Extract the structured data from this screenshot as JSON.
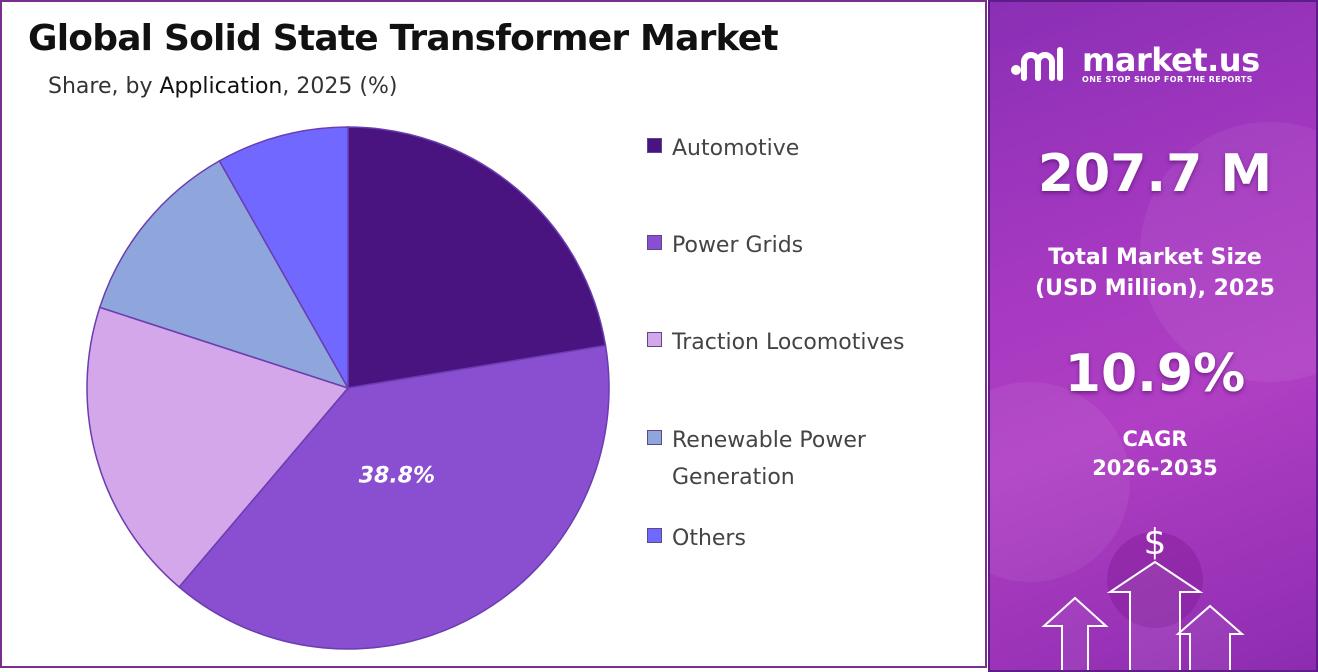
{
  "chart_data": {
    "type": "pie",
    "title": "Global Solid State Transformer Market",
    "subtitle_parts": [
      "Share, by ",
      "Application",
      ", 2025 (%)"
    ],
    "series": [
      {
        "name": "Automotive",
        "value": 22.4,
        "color": "#4a1480"
      },
      {
        "name": "Power Grids",
        "value": 38.8,
        "color": "#8a4fd0"
      },
      {
        "name": "Traction Locomotives",
        "value": 18.8,
        "color": "#d4a6ea"
      },
      {
        "name": "Renewable Power Generation",
        "value": 11.8,
        "color": "#8fa6dc"
      },
      {
        "name": "Others",
        "value": 8.2,
        "color": "#7068ff"
      }
    ],
    "data_labels": [
      {
        "series": "Power Grids",
        "text": "38.8%"
      }
    ],
    "legend_position": "right"
  },
  "legend": [
    {
      "label": "Automotive",
      "color": "#4a1480"
    },
    {
      "label": "Power Grids",
      "color": "#8a4fd0"
    },
    {
      "label": "Traction Locomotives",
      "color": "#d4a6ea"
    },
    {
      "label": "Renewable Power Generation",
      "color": "#8fa6dc"
    },
    {
      "label": "Others",
      "color": "#7068ff"
    }
  ],
  "sidebar": {
    "brand_name": "market.us",
    "brand_tagline": "ONE STOP SHOP FOR THE REPORTS",
    "market_size_value": "207.7 M",
    "market_size_label_line1": "Total Market Size",
    "market_size_label_line2": "(USD Million), 2025",
    "cagr_value": "10.9%",
    "cagr_label_line1": "CAGR",
    "cagr_label_line2": "2026-2035",
    "currency_symbol": "$"
  },
  "colors": {
    "border": "#7a2f8f",
    "panel_gradient_start": "#8a2fb5",
    "panel_gradient_end": "#b03fc4"
  }
}
